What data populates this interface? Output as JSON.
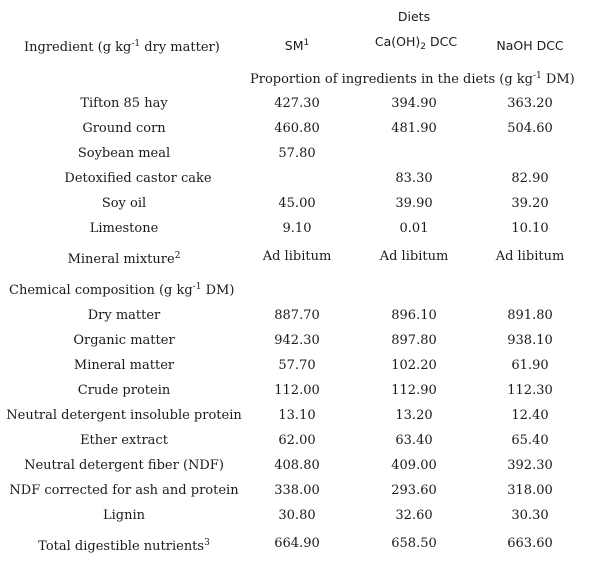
{
  "header": {
    "diets": "Diets",
    "ingredient_label": "Ingredient (g kg",
    "ingredient_sup": "-1",
    "ingredient_suffix": " dry matter)",
    "col_sm": "SM",
    "col_sm_sup": "1",
    "col_ca_prefix": "Ca(OH)",
    "col_ca_sub": "2",
    "col_ca_suffix": " DCC",
    "col_naoh": "NaOH DCC",
    "proportion_prefix": "Proportion of ingredients in the diets (g kg",
    "proportion_sup": "-1",
    "proportion_suffix": " DM)"
  },
  "ingredients": [
    {
      "label": "Tifton 85 hay",
      "sm": "427.30",
      "ca": "394.90",
      "naoh": "363.20"
    },
    {
      "label": "Ground corn",
      "sm": "460.80",
      "ca": "481.90",
      "naoh": "504.60"
    },
    {
      "label": "Soybean meal",
      "sm": "57.80",
      "ca": "",
      "naoh": ""
    },
    {
      "label": "Detoxified castor cake",
      "sm": "",
      "ca": "83.30",
      "naoh": "82.90"
    },
    {
      "label": "Soy oil",
      "sm": "45.00",
      "ca": "39.90",
      "naoh": "39.20"
    },
    {
      "label": "Limestone",
      "sm": "9.10",
      "ca": "0.01",
      "naoh": "10.10"
    }
  ],
  "mineral": {
    "label": "Mineral mixture",
    "sup": "2",
    "sm": "Ad libitum",
    "ca": "Ad libitum",
    "naoh": "Ad libitum"
  },
  "chemical": {
    "prefix": "Chemical composition (g kg",
    "sup": "-1",
    "suffix": " DM)"
  },
  "composition": [
    {
      "label": "Dry matter",
      "sm": "887.70",
      "ca": "896.10",
      "naoh": "891.80"
    },
    {
      "label": "Organic matter",
      "sm": "942.30",
      "ca": "897.80",
      "naoh": "938.10"
    },
    {
      "label": "Mineral matter",
      "sm": "57.70",
      "ca": "102.20",
      "naoh": "61.90"
    },
    {
      "label": "Crude protein",
      "sm": "112.00",
      "ca": "112.90",
      "naoh": "112.30"
    },
    {
      "label": "Neutral detergent insoluble protein",
      "sm": "13.10",
      "ca": "13.20",
      "naoh": "12.40"
    },
    {
      "label": "Ether extract",
      "sm": "62.00",
      "ca": "63.40",
      "naoh": "65.40"
    },
    {
      "label": "Neutral detergent fiber (NDF)",
      "sm": "408.80",
      "ca": "409.00",
      "naoh": "392.30"
    },
    {
      "label": "NDF corrected for ash and protein",
      "sm": "338.00",
      "ca": "293.60",
      "naoh": "318.00"
    },
    {
      "label": "Lignin",
      "sm": "30.80",
      "ca": "32.60",
      "naoh": "30.30"
    }
  ],
  "tdn": {
    "label": "Total digestible nutrients",
    "sup": "3",
    "sm": "664.90",
    "ca": "658.50",
    "naoh": "663.60"
  }
}
